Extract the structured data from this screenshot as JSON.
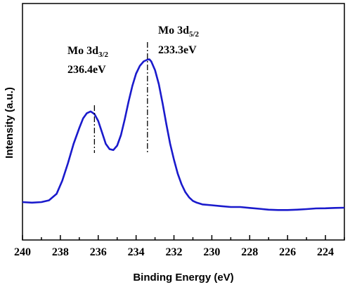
{
  "chart_data": {
    "type": "line",
    "title": "",
    "xlabel": "Binding Energy (eV)",
    "ylabel": "Intensity (a.u.)",
    "xlim": [
      240,
      223
    ],
    "x_reversed": true,
    "ylim": [
      0,
      100
    ],
    "x_ticks": [
      "240",
      "238",
      "236",
      "234",
      "232",
      "230",
      "228",
      "226",
      "224"
    ],
    "grid": false,
    "line_color": "#1a1acc",
    "series": [
      {
        "values_x": [
          240.0,
          239.5,
          239.0,
          238.6,
          238.2,
          237.9,
          237.6,
          237.3,
          237.0,
          236.8,
          236.6,
          236.4,
          236.2,
          236.0,
          235.8,
          235.6,
          235.4,
          235.2,
          235.0,
          234.8,
          234.6,
          234.4,
          234.2,
          234.0,
          233.8,
          233.6,
          233.4,
          233.3,
          233.2,
          233.0,
          232.8,
          232.6,
          232.4,
          232.2,
          232.0,
          231.8,
          231.6,
          231.4,
          231.2,
          231.0,
          230.8,
          230.5,
          230.0,
          229.5,
          229.0,
          228.5,
          228.0,
          227.5,
          227.0,
          226.5,
          226.0,
          225.5,
          225.0,
          224.5,
          224.0,
          223.5,
          223.0
        ],
        "values_y": [
          4.8,
          4.5,
          4.8,
          5.8,
          9.5,
          17.0,
          27.0,
          38.0,
          47.0,
          52.5,
          55.5,
          56.5,
          55.0,
          51.0,
          44.5,
          38.0,
          35.0,
          34.5,
          37.0,
          43.0,
          52.0,
          62.0,
          71.0,
          78.0,
          82.5,
          85.0,
          86.0,
          86.2,
          85.0,
          80.0,
          72.0,
          61.0,
          49.0,
          38.0,
          29.0,
          21.0,
          15.0,
          10.5,
          7.5,
          5.5,
          4.5,
          3.5,
          3.0,
          2.5,
          2.0,
          2.0,
          1.5,
          1.0,
          0.5,
          0.3,
          0.3,
          0.5,
          0.8,
          1.2,
          1.3,
          1.5,
          1.6
        ]
      }
    ],
    "annotations": [
      {
        "name": "Mo 3d3/2",
        "main": "Mo 3d",
        "sub": "3/2",
        "value": "236.4eV",
        "x": 236.2,
        "y": 56.5
      },
      {
        "name": "Mo 3d5/2",
        "main": "Mo 3d",
        "sub": "5/2",
        "value": "233.3eV",
        "x": 233.4,
        "y": 86.2
      }
    ]
  }
}
